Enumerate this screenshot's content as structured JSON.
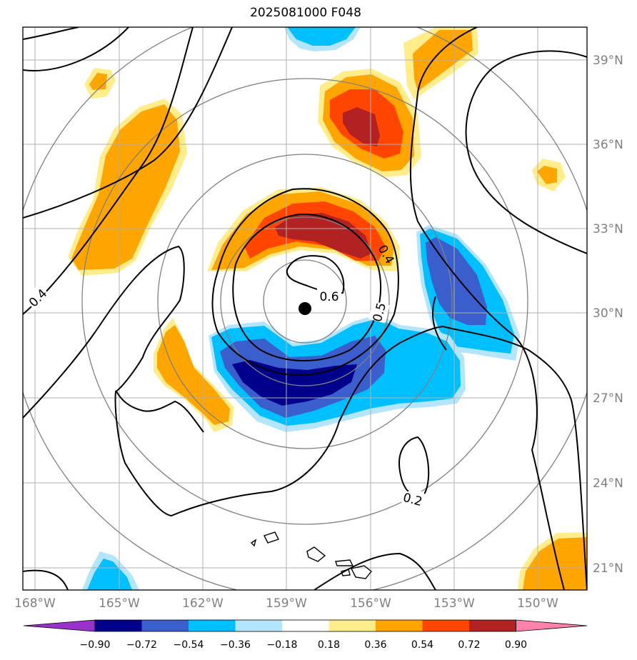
{
  "title": "2025081000 F048",
  "map": {
    "lat_labels": [
      "39°N",
      "36°N",
      "33°N",
      "30°N",
      "27°N",
      "24°N",
      "21°N"
    ],
    "lon_labels": [
      "168°W",
      "165°W",
      "162°W",
      "159°W",
      "156°W",
      "153°W",
      "150°W"
    ],
    "storm_center": {
      "lat": 30.2,
      "lon": -158.3
    },
    "contour_labels": [
      "0.4",
      "0.4",
      "0.6",
      "0.5",
      "0.2"
    ]
  },
  "colorbar": {
    "ticks": [
      "−0.90",
      "−0.72",
      "−0.54",
      "−0.36",
      "−0.18",
      "0.18",
      "0.36",
      "0.54",
      "0.72",
      "0.90"
    ],
    "colors": [
      "#9932cc",
      "#00008b",
      "#3a5fcd",
      "#00bfff",
      "#b3e5fc",
      "#ffffff",
      "#ffec8b",
      "#ffa500",
      "#ff4500",
      "#b22222",
      "#ff82ab"
    ]
  }
}
